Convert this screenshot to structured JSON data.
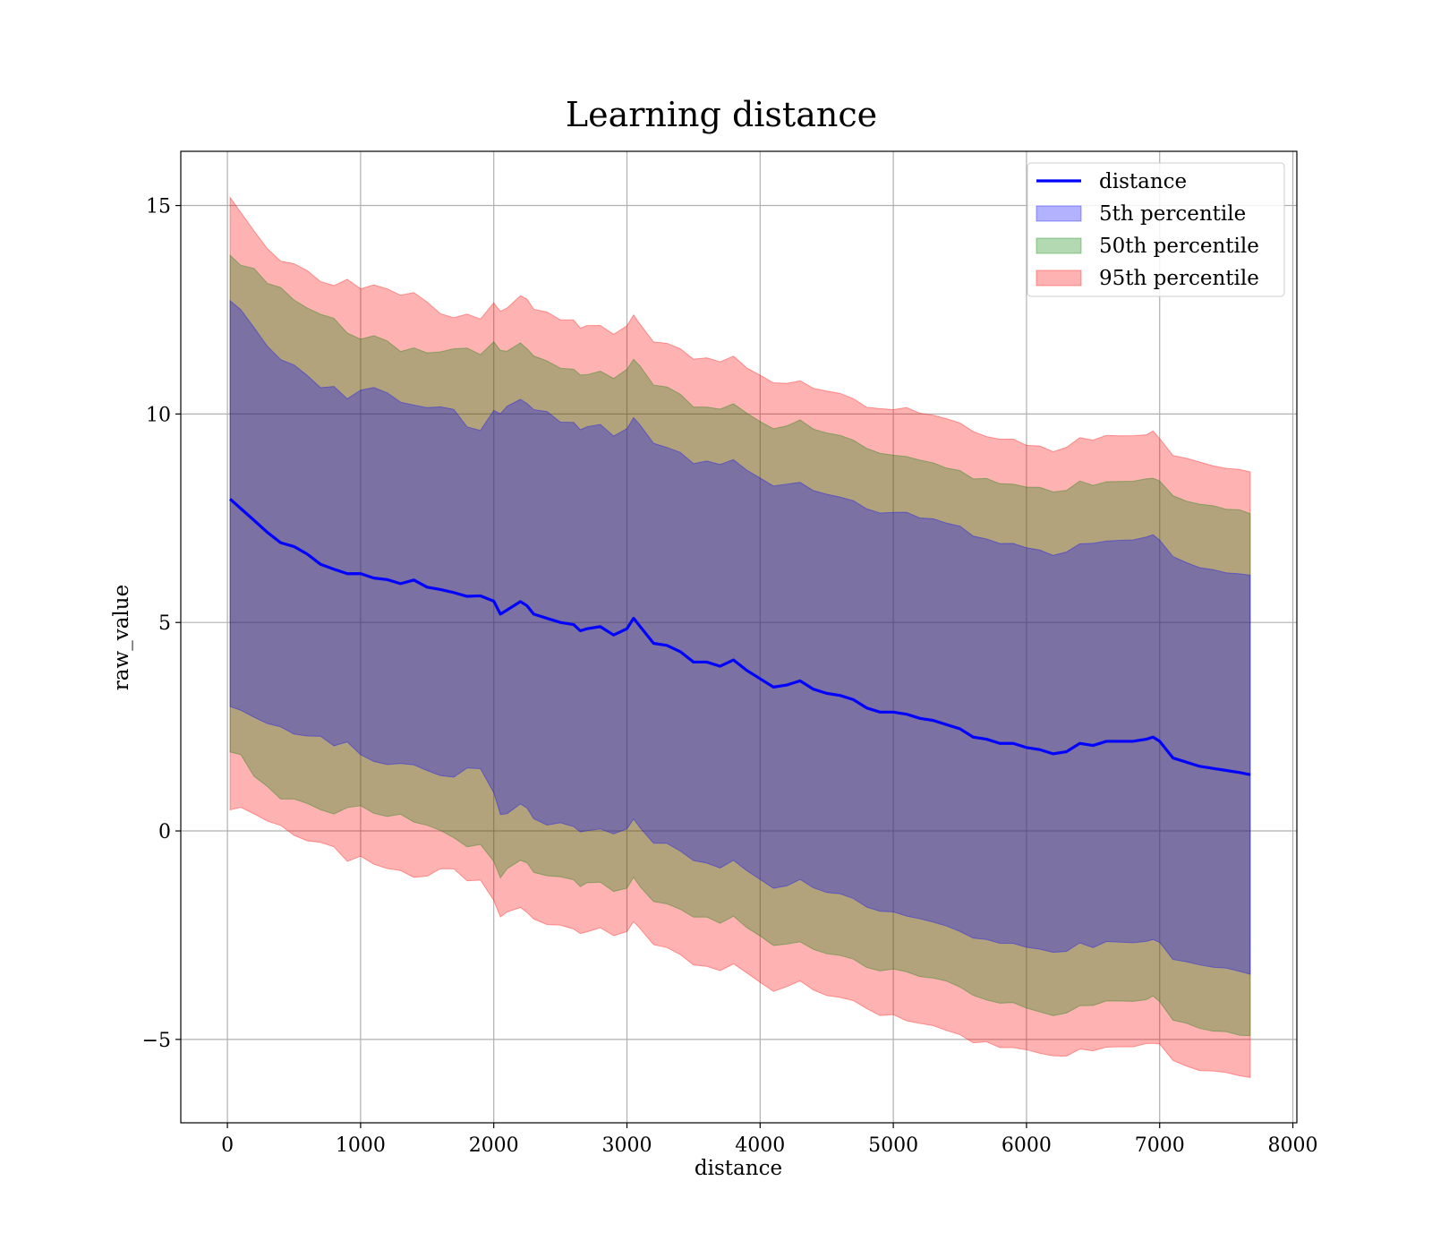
{
  "chart_data": {
    "type": "line",
    "title": "Learning distance",
    "xlabel": "distance",
    "ylabel": "raw_value",
    "xlim": [
      -350,
      8030
    ],
    "ylim": [
      -7,
      16.3
    ],
    "xticks": [
      0,
      1000,
      2000,
      3000,
      4000,
      5000,
      6000,
      7000,
      8000
    ],
    "yticks": [
      -5,
      0,
      5,
      10,
      15
    ],
    "xtick_labels": [
      "0",
      "1000",
      "2000",
      "3000",
      "4000",
      "5000",
      "6000",
      "7000",
      "8000"
    ],
    "ytick_labels": [
      "−5",
      "0",
      "5",
      "10",
      "15"
    ],
    "grid": true,
    "legend_position": "top-right",
    "x": [
      20,
      100,
      200,
      300,
      400,
      500,
      600,
      700,
      800,
      900,
      1000,
      1100,
      1200,
      1300,
      1400,
      1500,
      1600,
      1700,
      1800,
      1900,
      2000,
      2050,
      2100,
      2200,
      2250,
      2300,
      2400,
      2500,
      2600,
      2650,
      2700,
      2800,
      2900,
      3000,
      3050,
      3100,
      3200,
      3300,
      3400,
      3500,
      3600,
      3700,
      3800,
      3900,
      4000,
      4100,
      4200,
      4300,
      4400,
      4500,
      4600,
      4700,
      4800,
      4900,
      5000,
      5100,
      5200,
      5300,
      5400,
      5500,
      5600,
      5700,
      5800,
      5900,
      6000,
      6100,
      6200,
      6300,
      6400,
      6500,
      6600,
      6700,
      6800,
      6900,
      6950,
      7000,
      7100,
      7200,
      7300,
      7400,
      7500,
      7600,
      7680
    ],
    "series": [
      {
        "name": "distance",
        "kind": "line",
        "color": "#0000ff",
        "values": [
          7.85,
          7.7,
          7.4,
          7.1,
          6.9,
          6.75,
          6.6,
          6.45,
          6.35,
          6.25,
          6.2,
          6.15,
          6.05,
          5.95,
          5.9,
          5.8,
          5.75,
          5.7,
          5.6,
          5.55,
          5.5,
          5.2,
          5.3,
          5.5,
          5.4,
          5.2,
          5.1,
          5.0,
          4.95,
          4.8,
          4.85,
          4.9,
          4.7,
          4.85,
          5.1,
          4.9,
          4.5,
          4.45,
          4.3,
          4.05,
          4.05,
          3.95,
          4.1,
          3.85,
          3.65,
          3.45,
          3.5,
          3.6,
          3.4,
          3.3,
          3.25,
          3.15,
          2.95,
          2.85,
          2.85,
          2.8,
          2.7,
          2.65,
          2.55,
          2.45,
          2.25,
          2.2,
          2.1,
          2.1,
          2.0,
          1.95,
          1.85,
          1.9,
          2.1,
          2.05,
          2.15,
          2.15,
          2.15,
          2.2,
          2.25,
          2.15,
          1.75,
          1.65,
          1.55,
          1.5,
          1.45,
          1.4,
          1.35
        ]
      },
      {
        "name": "5th percentile",
        "kind": "band",
        "color": "#0000ff",
        "opacity": 0.3,
        "upper_offset": [
          4.8,
          4.7,
          4.6,
          4.55,
          4.5,
          4.45,
          4.4,
          4.4,
          4.35,
          4.35,
          4.3,
          4.3,
          4.3,
          4.3,
          4.3,
          4.3,
          4.3,
          4.3,
          4.3,
          4.3,
          4.8,
          4.9,
          4.9,
          4.9,
          4.9,
          4.9,
          4.9,
          4.8,
          4.8,
          4.8,
          4.8,
          4.8,
          4.8,
          4.85,
          4.85,
          4.85,
          4.8,
          4.8,
          4.8,
          4.8,
          4.8,
          4.8,
          4.8,
          4.8,
          4.8,
          4.8,
          4.8,
          4.8,
          4.8,
          4.8,
          4.8,
          4.8,
          4.8,
          4.8,
          4.8,
          4.8,
          4.8,
          4.8,
          4.8,
          4.8,
          4.8,
          4.8,
          4.8,
          4.8,
          4.8,
          4.8,
          4.8,
          4.8,
          4.8,
          4.8,
          4.8,
          4.8,
          4.8,
          4.8,
          4.8,
          4.8,
          4.8,
          4.8,
          4.8,
          4.8,
          4.8,
          4.8,
          4.8
        ],
        "lower_offset": [
          4.8,
          4.7,
          4.6,
          4.55,
          4.5,
          4.45,
          4.4,
          4.4,
          4.35,
          4.35,
          4.3,
          4.3,
          4.3,
          4.3,
          4.3,
          4.3,
          4.3,
          4.3,
          4.3,
          4.3,
          4.8,
          4.9,
          4.9,
          4.9,
          4.9,
          4.9,
          4.9,
          4.8,
          4.8,
          4.8,
          4.8,
          4.8,
          4.8,
          4.85,
          4.85,
          4.85,
          4.8,
          4.8,
          4.8,
          4.8,
          4.8,
          4.8,
          4.8,
          4.8,
          4.8,
          4.8,
          4.8,
          4.8,
          4.8,
          4.8,
          4.8,
          4.8,
          4.8,
          4.8,
          4.8,
          4.8,
          4.8,
          4.8,
          4.8,
          4.8,
          4.8,
          4.8,
          4.8,
          4.8,
          4.8,
          4.8,
          4.8,
          4.8,
          4.8,
          4.8,
          4.8,
          4.8,
          4.8,
          4.8,
          4.8,
          4.8,
          4.8,
          4.8,
          4.8,
          4.8,
          4.8,
          4.8,
          4.8
        ]
      },
      {
        "name": "50th percentile",
        "kind": "band",
        "color": "#008000",
        "opacity": 0.3,
        "upper_offset": [
          6.2,
          6.1,
          6.0,
          5.95,
          5.9,
          5.85,
          5.8,
          5.8,
          5.8,
          5.8,
          5.75,
          5.75,
          5.75,
          5.75,
          5.75,
          5.75,
          5.75,
          5.75,
          5.75,
          5.75,
          6.1,
          6.2,
          6.2,
          6.2,
          6.2,
          6.2,
          6.2,
          6.15,
          6.15,
          6.15,
          6.15,
          6.15,
          6.15,
          6.2,
          6.2,
          6.2,
          6.15,
          6.15,
          6.15,
          6.15,
          6.15,
          6.2,
          6.2,
          6.2,
          6.2,
          6.2,
          6.2,
          6.2,
          6.2,
          6.2,
          6.2,
          6.2,
          6.2,
          6.2,
          6.2,
          6.2,
          6.2,
          6.2,
          6.2,
          6.2,
          6.2,
          6.2,
          6.2,
          6.2,
          6.2,
          6.25,
          6.25,
          6.25,
          6.25,
          6.25,
          6.25,
          6.25,
          6.25,
          6.25,
          6.25,
          6.25,
          6.25,
          6.25,
          6.25,
          6.25,
          6.25,
          6.25,
          6.25
        ],
        "lower_offset": [
          6.2,
          6.1,
          6.0,
          5.95,
          5.9,
          5.85,
          5.8,
          5.8,
          5.8,
          5.8,
          5.75,
          5.75,
          5.75,
          5.75,
          5.75,
          5.75,
          5.75,
          5.75,
          5.75,
          5.75,
          6.1,
          6.2,
          6.2,
          6.2,
          6.2,
          6.2,
          6.2,
          6.15,
          6.15,
          6.15,
          6.15,
          6.15,
          6.15,
          6.2,
          6.2,
          6.2,
          6.15,
          6.15,
          6.15,
          6.15,
          6.15,
          6.2,
          6.2,
          6.2,
          6.2,
          6.2,
          6.2,
          6.2,
          6.2,
          6.2,
          6.2,
          6.2,
          6.2,
          6.2,
          6.2,
          6.2,
          6.2,
          6.2,
          6.2,
          6.2,
          6.2,
          6.2,
          6.2,
          6.2,
          6.2,
          6.25,
          6.25,
          6.25,
          6.25,
          6.25,
          6.25,
          6.25,
          6.25,
          6.25,
          6.25,
          6.25,
          6.25,
          6.25,
          6.25,
          6.25,
          6.25,
          6.25,
          6.25
        ]
      },
      {
        "name": "95th percentile",
        "kind": "band",
        "color": "#ff0000",
        "opacity": 0.3,
        "upper_offset": [
          7.3,
          7.2,
          7.1,
          7.0,
          6.95,
          6.9,
          6.9,
          6.85,
          6.85,
          6.85,
          6.8,
          6.8,
          6.8,
          6.8,
          6.8,
          6.8,
          6.8,
          6.8,
          6.8,
          6.8,
          7.2,
          7.3,
          7.3,
          7.3,
          7.3,
          7.3,
          7.3,
          7.25,
          7.25,
          7.25,
          7.25,
          7.25,
          7.25,
          7.3,
          7.3,
          7.3,
          7.25,
          7.25,
          7.25,
          7.25,
          7.25,
          7.25,
          7.25,
          7.25,
          7.25,
          7.25,
          7.25,
          7.25,
          7.25,
          7.25,
          7.25,
          7.25,
          7.25,
          7.25,
          7.25,
          7.3,
          7.3,
          7.3,
          7.3,
          7.3,
          7.3,
          7.3,
          7.3,
          7.3,
          7.3,
          7.3,
          7.3,
          7.3,
          7.3,
          7.3,
          7.3,
          7.3,
          7.3,
          7.3,
          7.3,
          7.3,
          7.3,
          7.3,
          7.3,
          7.3,
          7.3,
          7.3,
          7.3
        ],
        "lower_offset": [
          7.3,
          7.2,
          7.1,
          7.0,
          6.95,
          6.9,
          6.9,
          6.85,
          6.85,
          6.85,
          6.8,
          6.8,
          6.8,
          6.8,
          6.8,
          6.8,
          6.8,
          6.8,
          6.8,
          6.8,
          7.2,
          7.3,
          7.3,
          7.3,
          7.3,
          7.3,
          7.3,
          7.25,
          7.25,
          7.25,
          7.25,
          7.25,
          7.25,
          7.3,
          7.3,
          7.3,
          7.25,
          7.25,
          7.25,
          7.25,
          7.25,
          7.25,
          7.25,
          7.25,
          7.25,
          7.25,
          7.25,
          7.25,
          7.25,
          7.25,
          7.25,
          7.25,
          7.25,
          7.25,
          7.25,
          7.3,
          7.3,
          7.3,
          7.3,
          7.3,
          7.3,
          7.3,
          7.3,
          7.3,
          7.3,
          7.3,
          7.3,
          7.3,
          7.3,
          7.3,
          7.3,
          7.3,
          7.3,
          7.3,
          7.3,
          7.3,
          7.3,
          7.3,
          7.3,
          7.3,
          7.3,
          7.3,
          7.3
        ]
      }
    ]
  }
}
